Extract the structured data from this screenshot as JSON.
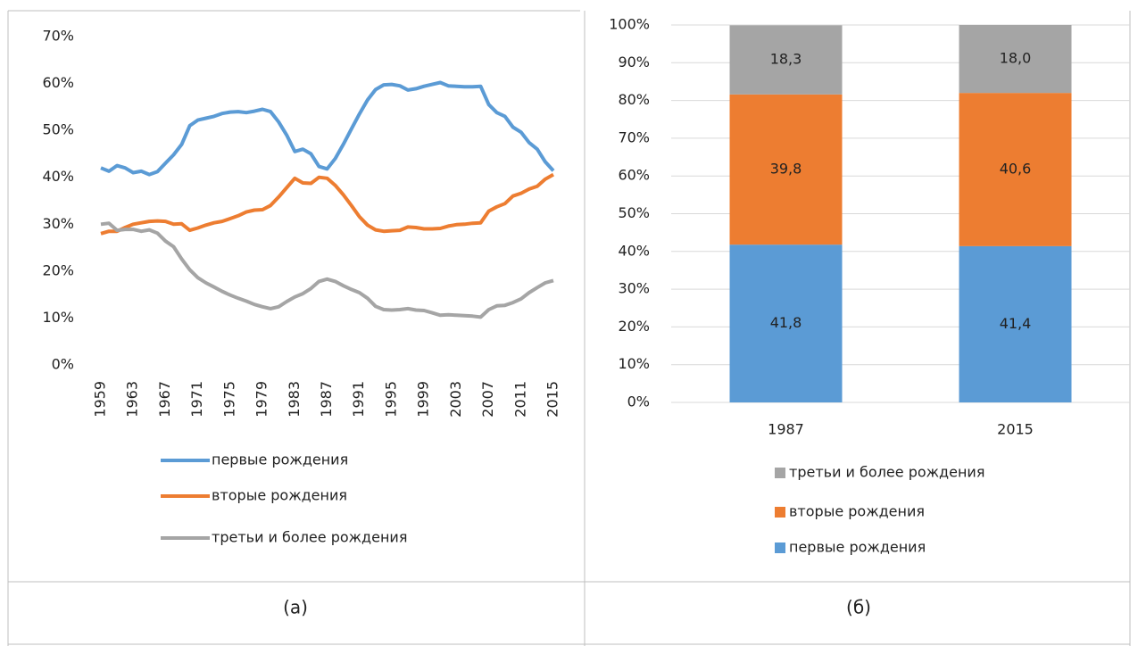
{
  "chart_data": [
    {
      "type": "line",
      "caption": "(а)",
      "x": [
        1959,
        1960,
        1961,
        1962,
        1963,
        1964,
        1965,
        1966,
        1967,
        1968,
        1969,
        1970,
        1971,
        1972,
        1973,
        1974,
        1975,
        1976,
        1977,
        1978,
        1979,
        1980,
        1981,
        1982,
        1983,
        1984,
        1985,
        1986,
        1987,
        1988,
        1989,
        1990,
        1991,
        1992,
        1993,
        1994,
        1995,
        1996,
        1997,
        1998,
        1999,
        2000,
        2001,
        2002,
        2003,
        2004,
        2005,
        2006,
        2007,
        2008,
        2009,
        2010,
        2011,
        2012,
        2013,
        2014,
        2015
      ],
      "xlim": [
        1959,
        2015
      ],
      "xticks": [
        1959,
        1963,
        1967,
        1971,
        1975,
        1979,
        1983,
        1987,
        1991,
        1995,
        1999,
        2003,
        2007,
        2011,
        2015
      ],
      "ylim": [
        0,
        70
      ],
      "yticks": [
        {
          "value": 0,
          "label": "0%"
        },
        {
          "value": 10,
          "label": "10%"
        },
        {
          "value": 20,
          "label": "20%"
        },
        {
          "value": 30,
          "label": "30%"
        },
        {
          "value": 40,
          "label": "40%"
        },
        {
          "value": 50,
          "label": "50%"
        },
        {
          "value": 60,
          "label": "60%"
        },
        {
          "value": 70,
          "label": "70%"
        }
      ],
      "grid": false,
      "legend": "bottom",
      "series": [
        {
          "name": "первые рождения",
          "color": "#5b9bd5",
          "values": [
            42,
            41.3,
            42.5,
            42,
            41,
            41.3,
            40.6,
            41.2,
            43,
            44.8,
            47,
            51,
            52.2,
            52.6,
            53,
            53.6,
            53.9,
            54,
            53.8,
            54.1,
            54.5,
            54,
            51.8,
            49,
            45.5,
            46,
            45,
            42.3,
            41.8,
            44,
            47,
            50.3,
            53.5,
            56.5,
            58.7,
            59.7,
            59.8,
            59.5,
            58.6,
            58.9,
            59.4,
            59.8,
            60.2,
            59.5,
            59.4,
            59.3,
            59.3,
            59.4,
            55.5,
            53.8,
            53,
            50.7,
            49.6,
            47.4,
            46,
            43.3,
            41.4
          ]
        },
        {
          "name": "вторые рождения",
          "color": "#ed7d31",
          "values": [
            28,
            28.5,
            28.5,
            29.3,
            30,
            30.3,
            30.6,
            30.7,
            30.6,
            30,
            30.1,
            28.7,
            29.2,
            29.8,
            30.3,
            30.6,
            31.2,
            31.8,
            32.6,
            33,
            33.1,
            34,
            35.8,
            37.8,
            39.8,
            38.8,
            38.7,
            40,
            39.8,
            38.3,
            36.3,
            34,
            31.6,
            29.8,
            28.8,
            28.5,
            28.6,
            28.7,
            29.4,
            29.3,
            29,
            29,
            29.1,
            29.6,
            29.9,
            30,
            30.2,
            30.3,
            32.8,
            33.7,
            34.4,
            36,
            36.6,
            37.5,
            38.1,
            39.6,
            40.6
          ]
        },
        {
          "name": "третьи и более рождения",
          "color": "#a5a5a5",
          "values": [
            30,
            30.2,
            28.7,
            28.9,
            28.9,
            28.5,
            28.8,
            28.1,
            26.4,
            25.2,
            22.6,
            20.3,
            18.6,
            17.5,
            16.6,
            15.7,
            14.9,
            14.2,
            13.6,
            12.9,
            12.4,
            12,
            12.4,
            13.5,
            14.5,
            15.2,
            16.3,
            17.8,
            18.3,
            17.8,
            16.9,
            16.1,
            15.4,
            14.2,
            12.5,
            11.8,
            11.7,
            11.8,
            12,
            11.7,
            11.6,
            11.1,
            10.6,
            10.7,
            10.6,
            10.5,
            10.4,
            10.2,
            11.8,
            12.6,
            12.7,
            13.3,
            14.1,
            15.4,
            16.5,
            17.5,
            18
          ]
        }
      ]
    },
    {
      "type": "stacked_bar",
      "caption": "(б)",
      "categories": [
        "1987",
        "2015"
      ],
      "ylim": [
        0,
        100
      ],
      "yticks": [
        {
          "value": 0,
          "label": "0%"
        },
        {
          "value": 10,
          "label": "10%"
        },
        {
          "value": 20,
          "label": "20%"
        },
        {
          "value": 30,
          "label": "30%"
        },
        {
          "value": 40,
          "label": "40%"
        },
        {
          "value": 50,
          "label": "50%"
        },
        {
          "value": 60,
          "label": "60%"
        },
        {
          "value": 70,
          "label": "70%"
        },
        {
          "value": 80,
          "label": "80%"
        },
        {
          "value": 90,
          "label": "90%"
        },
        {
          "value": 100,
          "label": "100%"
        }
      ],
      "grid": true,
      "legend": "bottom",
      "series": [
        {
          "name": "первые рождения",
          "color": "#5b9bd5",
          "values": [
            41.8,
            41.4
          ],
          "value_labels": [
            "41,8",
            "41,4"
          ]
        },
        {
          "name": "вторые рождения",
          "color": "#ed7d31",
          "values": [
            39.8,
            40.6
          ],
          "value_labels": [
            "39,8",
            "40,6"
          ]
        },
        {
          "name": "третьи и более рождения",
          "color": "#a5a5a5",
          "values": [
            18.3,
            18.0
          ],
          "value_labels": [
            "18,3",
            "18,0"
          ]
        }
      ]
    }
  ]
}
